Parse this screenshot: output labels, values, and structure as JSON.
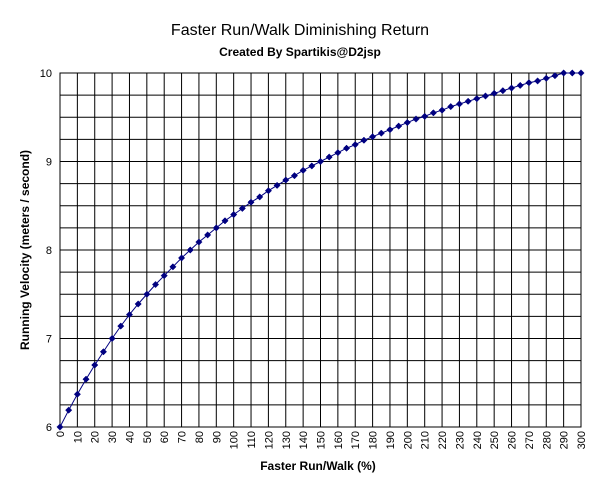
{
  "chart_data": {
    "type": "line",
    "title": "Faster Run/Walk Diminishing Return",
    "subtitle": "Created By Spartikis@D2jsp",
    "xlabel": "Faster Run/Walk (%)",
    "ylabel": "Running Velocity (meters / second)",
    "xlim": [
      0,
      300
    ],
    "ylim": [
      6,
      10
    ],
    "x_ticks": [
      "0",
      "10",
      "20",
      "30",
      "40",
      "50",
      "60",
      "70",
      "80",
      "90",
      "100",
      "110",
      "120",
      "130",
      "140",
      "150",
      "160",
      "170",
      "180",
      "190",
      "200",
      "210",
      "220",
      "230",
      "240",
      "250",
      "260",
      "270",
      "280",
      "290",
      "300"
    ],
    "y_ticks": [
      "6",
      "7",
      "8",
      "9",
      "10"
    ],
    "grid": true,
    "legend": "none",
    "series_color": "#000080",
    "series": [
      {
        "x": [
          0,
          5,
          10,
          15,
          20,
          25,
          30,
          35,
          40,
          45,
          50,
          55,
          60,
          65,
          70,
          75,
          80,
          85,
          90,
          95,
          100,
          105,
          110,
          115,
          120,
          125,
          130,
          135,
          140,
          145,
          150,
          155,
          160,
          165,
          170,
          175,
          180,
          185,
          190,
          195,
          200,
          205,
          210,
          215,
          220,
          225,
          230,
          235,
          240,
          245,
          250,
          255,
          260,
          265,
          270,
          275,
          280,
          285,
          290,
          295,
          300
        ],
        "values": [
          6.0,
          6.19,
          6.37,
          6.54,
          6.7,
          6.85,
          7.0,
          7.14,
          7.27,
          7.39,
          7.5,
          7.61,
          7.71,
          7.81,
          7.91,
          8.0,
          8.09,
          8.17,
          8.25,
          8.33,
          8.4,
          8.47,
          8.54,
          8.6,
          8.67,
          8.73,
          8.79,
          8.84,
          8.9,
          8.95,
          9.0,
          9.05,
          9.1,
          9.15,
          9.19,
          9.24,
          9.28,
          9.32,
          9.36,
          9.4,
          9.44,
          9.48,
          9.51,
          9.55,
          9.58,
          9.62,
          9.65,
          9.68,
          9.71,
          9.74,
          9.77,
          9.8,
          9.83,
          9.86,
          9.89,
          9.91,
          9.94,
          9.97,
          10.0,
          10.0,
          10.0
        ]
      }
    ]
  }
}
